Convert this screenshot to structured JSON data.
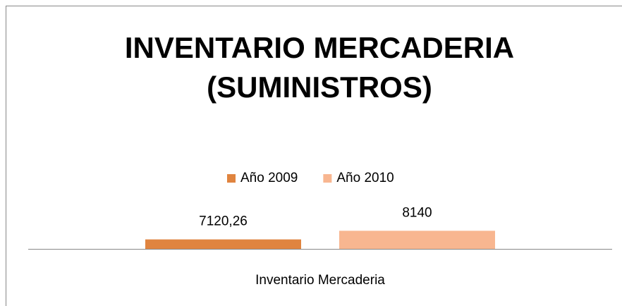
{
  "chart_data": {
    "type": "bar",
    "title": "INVENTARIO MERCADERIA (SUMINISTROS)",
    "categories": [
      "Inventario Mercaderia"
    ],
    "series": [
      {
        "name": "Año 2009",
        "color": "#e0843f",
        "values": [
          7120.26
        ],
        "value_labels": [
          "7120,26"
        ]
      },
      {
        "name": "Año 2010",
        "color": "#f8b690",
        "values": [
          8140
        ],
        "value_labels": [
          "8140"
        ]
      }
    ],
    "ylim": [
      6000,
      8500
    ],
    "legend": "top"
  }
}
